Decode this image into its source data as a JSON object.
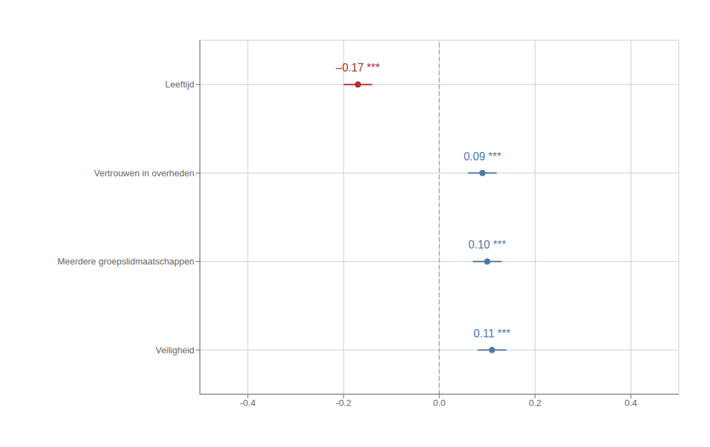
{
  "chart_data": {
    "type": "scatter",
    "categories": [
      "Veiligheid",
      "Meerdere groepslidmaatschappen",
      "Vertrouwen in overheden",
      "Leeftijd"
    ],
    "values": [
      0.11,
      0.1,
      0.09,
      -0.17
    ],
    "ci_low": [
      0.08,
      0.07,
      0.06,
      -0.2
    ],
    "ci_high": [
      0.14,
      0.13,
      0.12,
      -0.14
    ],
    "colors": [
      "#4a7aab",
      "#4a7aab",
      "#4a7aab",
      "#b03030"
    ],
    "data_labels": true,
    "value_labels": [
      "0.11 ***",
      "0.10 ***",
      "0.09 ***",
      "–0.17 ***"
    ],
    "xlim": [
      -0.5,
      0.5
    ],
    "xticks": [
      -0.4,
      -0.2,
      {
        "value": 0,
        "label": "0.0"
      },
      0.2,
      0.4
    ],
    "reference_line_x": 0,
    "grid": true,
    "marker": "circle"
  }
}
